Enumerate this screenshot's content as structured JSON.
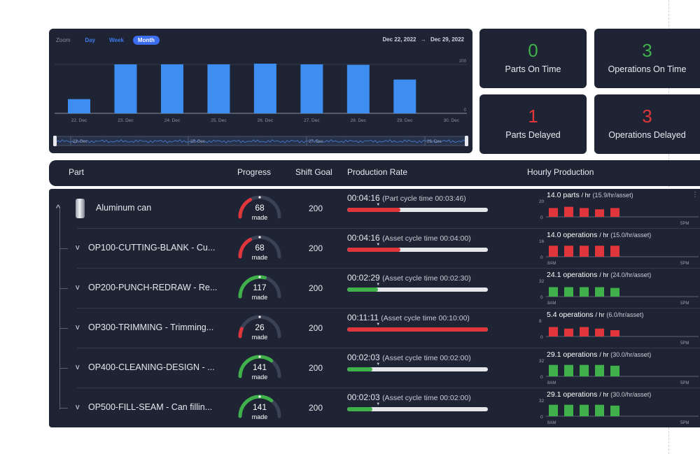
{
  "zoom": {
    "label": "Zoom",
    "options": [
      {
        "label": "Day",
        "active": false
      },
      {
        "label": "Week",
        "active": false
      },
      {
        "label": "Month",
        "active": true
      }
    ]
  },
  "date_range": {
    "start": "Dec 22, 2022",
    "arrow": "→",
    "end": "Dec 29, 2022"
  },
  "chart_data": {
    "type": "bar",
    "categories": [
      "22. Dec",
      "23. Dec",
      "24. Dec",
      "25. Dec",
      "26. Dec",
      "27. Dec",
      "28. Dec",
      "29. Dec",
      "30. Dec"
    ],
    "values": [
      58,
      200,
      200,
      200,
      203,
      200,
      198,
      138,
      null
    ],
    "y_ticks": [
      0,
      200
    ],
    "ylim": [
      0,
      240
    ],
    "navigator_labels": [
      "23. Dec",
      "25. Dec",
      "27. Dec",
      "29. Dec"
    ],
    "bar_color": "#3d8ef0"
  },
  "kpis": [
    {
      "value": "0",
      "label": "Parts On Time",
      "color": "green"
    },
    {
      "value": "3",
      "label": "Operations On Time",
      "color": "green"
    },
    {
      "value": "1",
      "label": "Parts Delayed",
      "color": "red"
    },
    {
      "value": "3",
      "label": "Operations Delayed",
      "color": "red"
    }
  ],
  "table": {
    "headers": {
      "part": "Part",
      "progress": "Progress",
      "goal": "Shift Goal",
      "rate": "Production Rate",
      "hourly": "Hourly Production"
    },
    "rows": [
      {
        "name": "Aluminum can",
        "caret": "^",
        "is_part": true,
        "made": "68",
        "made_label": "made",
        "progress": 0.34,
        "status": "red",
        "goal": "200",
        "time": "00:04:16",
        "cycle": "(Part cycle time 00:03:46)",
        "rate_fill": 0.38,
        "hp_value": "14.0 parts",
        "hp_unit": "/ hr",
        "hp_sub": "(15.9/hr/asset)",
        "hp_ymax": "20",
        "hp_ymin": "0",
        "hp_bars": [
          14,
          16,
          14,
          12,
          14
        ],
        "hp_max": 20,
        "hp_x_start": "",
        "hp_x_end": "5PM"
      },
      {
        "name": "OP100-CUTTING-BLANK - Cu...",
        "caret": "v",
        "is_part": false,
        "made": "68",
        "made_label": "made",
        "progress": 0.34,
        "status": "red",
        "goal": "200",
        "time": "00:04:16",
        "cycle": "(Asset cycle time 00:04:00)",
        "rate_fill": 0.38,
        "hp_value": "14.0 operations",
        "hp_unit": "/ hr",
        "hp_sub": "(15.0/hr/asset)",
        "hp_ymax": "16",
        "hp_ymin": "0",
        "hp_bars": [
          14,
          14,
          14,
          14,
          14
        ],
        "hp_max": 16,
        "hp_x_start": "8AM",
        "hp_x_end": "5PM"
      },
      {
        "name": "OP200-PUNCH-REDRAW - Re...",
        "caret": "v",
        "is_part": false,
        "made": "117",
        "made_label": "made",
        "progress": 0.585,
        "status": "green",
        "goal": "200",
        "time": "00:02:29",
        "cycle": "(Asset cycle time 00:02:30)",
        "rate_fill": 0.22,
        "hp_value": "24.1 operations",
        "hp_unit": "/ hr",
        "hp_sub": "(24.0/hr/asset)",
        "hp_ymax": "32",
        "hp_ymin": "0",
        "hp_bars": [
          24,
          24,
          24,
          24,
          22
        ],
        "hp_max": 32,
        "hp_x_start": "8AM",
        "hp_x_end": "5PM"
      },
      {
        "name": "OP300-TRIMMING - Trimming...",
        "caret": "v",
        "is_part": false,
        "made": "26",
        "made_label": "made",
        "progress": 0.13,
        "status": "red",
        "goal": "200",
        "time": "00:11:11",
        "cycle": "(Asset cycle time 00:10:00)",
        "rate_fill": 1.0,
        "hp_value": "5.4 operations",
        "hp_unit": "/ hr",
        "hp_sub": "(6.0/hr/asset)",
        "hp_ymax": "8",
        "hp_ymin": "0",
        "hp_bars": [
          6,
          5,
          6,
          5,
          4
        ],
        "hp_max": 8,
        "hp_x_start": "",
        "hp_x_end": "5PM"
      },
      {
        "name": "OP400-CLEANING-DESIGN - ...",
        "caret": "v",
        "is_part": false,
        "made": "141",
        "made_label": "made",
        "progress": 0.705,
        "status": "green",
        "goal": "200",
        "time": "00:02:03",
        "cycle": "(Asset cycle time 00:02:00)",
        "rate_fill": 0.18,
        "hp_value": "29.1 operations",
        "hp_unit": "/ hr",
        "hp_sub": "(30.0/hr/asset)",
        "hp_ymax": "32",
        "hp_ymin": "0",
        "hp_bars": [
          29,
          29,
          29,
          29,
          27
        ],
        "hp_max": 32,
        "hp_x_start": "8AM",
        "hp_x_end": "5PM"
      },
      {
        "name": "OP500-FILL-SEAM - Can fillin...",
        "caret": "v",
        "is_part": false,
        "made": "141",
        "made_label": "made",
        "progress": 0.705,
        "status": "green",
        "goal": "200",
        "time": "00:02:03",
        "cycle": "(Asset cycle time 00:02:00)",
        "rate_fill": 0.18,
        "hp_value": "29.1 operations",
        "hp_unit": "/ hr",
        "hp_sub": "(30.0/hr/asset)",
        "hp_ymax": "32",
        "hp_ymin": "0",
        "hp_bars": [
          29,
          29,
          29,
          29,
          27
        ],
        "hp_max": 32,
        "hp_x_start": "8AM",
        "hp_x_end": "5PM"
      }
    ]
  },
  "colors": {
    "panel": "#1e2433",
    "green": "#3fb04a",
    "red": "#e0353a",
    "blue": "#3d8ef0"
  }
}
